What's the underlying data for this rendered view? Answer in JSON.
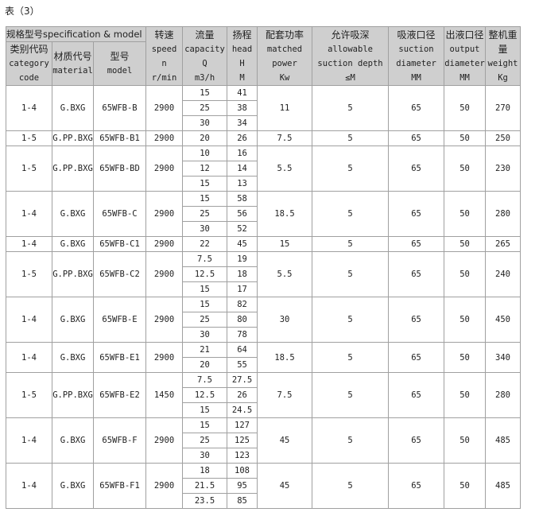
{
  "caption": "表（3）",
  "header": {
    "spec": "规格型号specification & model",
    "category": [
      "类别代码",
      "category",
      "code"
    ],
    "material": [
      "材质代号",
      "material"
    ],
    "model": [
      "型号",
      "model"
    ],
    "speed": [
      "转速",
      "speed",
      "n",
      "r/min"
    ],
    "capacity": [
      "流量",
      "capacity",
      "Q",
      "m3/h"
    ],
    "head": [
      "扬程",
      "head",
      "H",
      "M"
    ],
    "power": [
      "配套功率",
      "matched",
      "power",
      "Kw"
    ],
    "suction_depth": [
      "允许吸深",
      "allowable",
      "suction depth",
      "≤M"
    ],
    "suction_diameter": [
      "吸液口径",
      "suction",
      "diameter",
      "MM"
    ],
    "output_diameter": [
      "出液口径",
      "output",
      "diameter",
      "MM"
    ],
    "weight": [
      "整机重量",
      "weight",
      "Kg"
    ]
  },
  "rows": [
    {
      "category": "1-4",
      "material": "G.BXG",
      "model": "65WFB-B",
      "speed": "2900",
      "points": [
        [
          "15",
          "41"
        ],
        [
          "25",
          "38"
        ],
        [
          "30",
          "34"
        ]
      ],
      "power": "11",
      "suction_depth": "5",
      "suction_diameter": "65",
      "output_diameter": "50",
      "weight": "270"
    },
    {
      "category": "1-5",
      "material": "G.PP.BXG",
      "model": "65WFB-B1",
      "speed": "2900",
      "points": [
        [
          "20",
          "26"
        ]
      ],
      "power": "7.5",
      "suction_depth": "5",
      "suction_diameter": "65",
      "output_diameter": "50",
      "weight": "250"
    },
    {
      "category": "1-5",
      "material": "G.PP.BXG",
      "model": "65WFB-BD",
      "speed": "2900",
      "points": [
        [
          "10",
          "16"
        ],
        [
          "12",
          "14"
        ],
        [
          "15",
          "13"
        ]
      ],
      "power": "5.5",
      "suction_depth": "5",
      "suction_diameter": "65",
      "output_diameter": "50",
      "weight": "230"
    },
    {
      "category": "1-4",
      "material": "G.BXG",
      "model": "65WFB-C",
      "speed": "2900",
      "points": [
        [
          "15",
          "58"
        ],
        [
          "25",
          "56"
        ],
        [
          "30",
          "52"
        ]
      ],
      "power": "18.5",
      "suction_depth": "5",
      "suction_diameter": "65",
      "output_diameter": "50",
      "weight": "280"
    },
    {
      "category": "1-4",
      "material": "G.BXG",
      "model": "65WFB-C1",
      "speed": "2900",
      "points": [
        [
          "22",
          "45"
        ]
      ],
      "power": "15",
      "suction_depth": "5",
      "suction_diameter": "65",
      "output_diameter": "50",
      "weight": "265"
    },
    {
      "category": "1-5",
      "material": "G.PP.BXG",
      "model": "65WFB-C2",
      "speed": "2900",
      "points": [
        [
          "7.5",
          "19"
        ],
        [
          "12.5",
          "18"
        ],
        [
          "15",
          "17"
        ]
      ],
      "power": "5.5",
      "suction_depth": "5",
      "suction_diameter": "65",
      "output_diameter": "50",
      "weight": "240"
    },
    {
      "category": "1-4",
      "material": "G.BXG",
      "model": "65WFB-E",
      "speed": "2900",
      "points": [
        [
          "15",
          "82"
        ],
        [
          "25",
          "80"
        ],
        [
          "30",
          "78"
        ]
      ],
      "power": "30",
      "suction_depth": "5",
      "suction_diameter": "65",
      "output_diameter": "50",
      "weight": "450"
    },
    {
      "category": "1-4",
      "material": "G.BXG",
      "model": "65WFB-E1",
      "speed": "2900",
      "points": [
        [
          "21",
          "64"
        ],
        [
          "20",
          "55"
        ]
      ],
      "power": "18.5",
      "suction_depth": "5",
      "suction_diameter": "65",
      "output_diameter": "50",
      "weight": "340"
    },
    {
      "category": "1-5",
      "material": "G.PP.BXG",
      "model": "65WFB-E2",
      "speed": "1450",
      "points": [
        [
          "7.5",
          "27.5"
        ],
        [
          "12.5",
          "26"
        ],
        [
          "15",
          "24.5"
        ]
      ],
      "power": "7.5",
      "suction_depth": "5",
      "suction_diameter": "65",
      "output_diameter": "50",
      "weight": "280"
    },
    {
      "category": "1-4",
      "material": "G.BXG",
      "model": "65WFB-F",
      "speed": "2900",
      "points": [
        [
          "15",
          "127"
        ],
        [
          "25",
          "125"
        ],
        [
          "30",
          "123"
        ]
      ],
      "power": "45",
      "suction_depth": "5",
      "suction_diameter": "65",
      "output_diameter": "50",
      "weight": "485"
    },
    {
      "category": "1-4",
      "material": "G.BXG",
      "model": "65WFB-F1",
      "speed": "2900",
      "points": [
        [
          "18",
          "108"
        ],
        [
          "21.5",
          "95"
        ],
        [
          "23.5",
          "85"
        ]
      ],
      "power": "45",
      "suction_depth": "5",
      "suction_diameter": "65",
      "output_diameter": "50",
      "weight": "485"
    }
  ]
}
